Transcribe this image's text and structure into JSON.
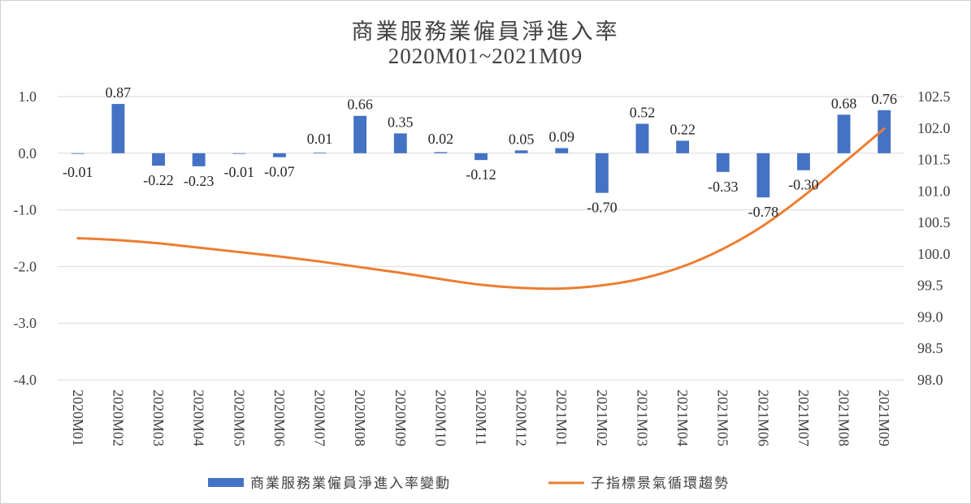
{
  "chart_data": {
    "type": "bar",
    "title": "商業服務業僱員淨進入率",
    "subtitle": "2020M01~2021M09",
    "categories": [
      "2020M01",
      "2020M02",
      "2020M03",
      "2020M04",
      "2020M05",
      "2020M06",
      "2020M07",
      "2020M08",
      "2020M09",
      "2020M10",
      "2020M11",
      "2020M12",
      "2021M01",
      "2021M02",
      "2021M03",
      "2021M04",
      "2021M05",
      "2021M06",
      "2021M07",
      "2021M08",
      "2021M09"
    ],
    "series": [
      {
        "name": "商業服務業僱員淨進入率變動",
        "type": "bar",
        "axis": "left",
        "color": "#4472C4",
        "values": [
          -0.01,
          0.87,
          -0.22,
          -0.23,
          -0.01,
          -0.07,
          0.01,
          0.66,
          0.35,
          0.02,
          -0.12,
          0.05,
          0.09,
          -0.7,
          0.52,
          0.22,
          -0.33,
          -0.78,
          -0.3,
          0.68,
          0.76
        ],
        "labels": [
          "-0.01",
          "0.87",
          "-0.22",
          "-0.23",
          "-0.01",
          "-0.07",
          "0.01",
          "0.66",
          "0.35",
          "0.02",
          "-0.12",
          "0.05",
          "0.09",
          "-0.70",
          "0.52",
          "0.22",
          "-0.33",
          "-0.78",
          "-0.30",
          "0.68",
          "0.76"
        ]
      },
      {
        "name": "子指標景氣循環趨勢",
        "type": "line",
        "axis": "right",
        "color": "#ED7D31",
        "values": [
          100.25,
          100.22,
          100.17,
          100.1,
          100.03,
          99.96,
          99.88,
          99.79,
          99.7,
          99.6,
          99.51,
          99.46,
          99.45,
          99.5,
          99.61,
          99.8,
          100.08,
          100.45,
          100.92,
          101.45,
          101.99
        ]
      }
    ],
    "y_left": {
      "ylim": [
        -4.0,
        1.0
      ],
      "ticks": [
        "1.0",
        "0.0",
        "-1.0",
        "-2.0",
        "-3.0",
        "-4.0"
      ],
      "tick_values": [
        1,
        0,
        -1,
        -2,
        -3,
        -4
      ]
    },
    "y_right": {
      "ylim": [
        98.0,
        102.5
      ],
      "ticks": [
        "102.5",
        "102.0",
        "101.5",
        "101.0",
        "100.5",
        "100.0",
        "99.5",
        "99.0",
        "98.5",
        "98.0"
      ],
      "tick_values": [
        102.5,
        102,
        101.5,
        101,
        100.5,
        100,
        99.5,
        99,
        98.5,
        98
      ]
    },
    "grid": true,
    "legend_position": "bottom"
  }
}
